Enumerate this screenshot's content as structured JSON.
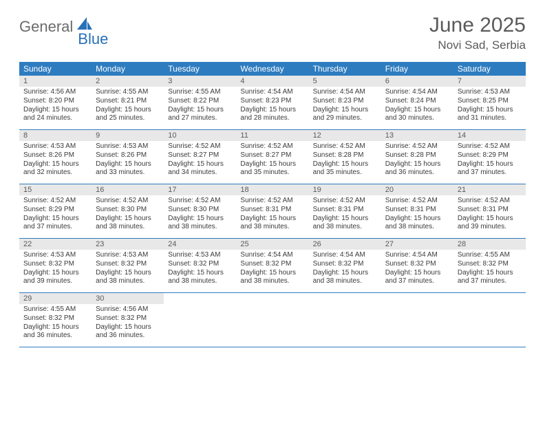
{
  "logo": {
    "text1": "General",
    "text2": "Blue"
  },
  "title": "June 2025",
  "location": "Novi Sad, Serbia",
  "colors": {
    "header_bg": "#2e7cc0",
    "header_fg": "#ffffff",
    "daynum_bg": "#e8e8e8",
    "text": "#3a3a3a",
    "title_color": "#5a5a5a",
    "logo_gray": "#6b6b6b",
    "logo_blue": "#2871b8",
    "row_border": "#2e7cc0"
  },
  "day_labels": [
    "Sunday",
    "Monday",
    "Tuesday",
    "Wednesday",
    "Thursday",
    "Friday",
    "Saturday"
  ],
  "weeks": [
    [
      {
        "n": "1",
        "sr": "4:56 AM",
        "ss": "8:20 PM",
        "dl": "15 hours and 24 minutes."
      },
      {
        "n": "2",
        "sr": "4:55 AM",
        "ss": "8:21 PM",
        "dl": "15 hours and 25 minutes."
      },
      {
        "n": "3",
        "sr": "4:55 AM",
        "ss": "8:22 PM",
        "dl": "15 hours and 27 minutes."
      },
      {
        "n": "4",
        "sr": "4:54 AM",
        "ss": "8:23 PM",
        "dl": "15 hours and 28 minutes."
      },
      {
        "n": "5",
        "sr": "4:54 AM",
        "ss": "8:23 PM",
        "dl": "15 hours and 29 minutes."
      },
      {
        "n": "6",
        "sr": "4:54 AM",
        "ss": "8:24 PM",
        "dl": "15 hours and 30 minutes."
      },
      {
        "n": "7",
        "sr": "4:53 AM",
        "ss": "8:25 PM",
        "dl": "15 hours and 31 minutes."
      }
    ],
    [
      {
        "n": "8",
        "sr": "4:53 AM",
        "ss": "8:26 PM",
        "dl": "15 hours and 32 minutes."
      },
      {
        "n": "9",
        "sr": "4:53 AM",
        "ss": "8:26 PM",
        "dl": "15 hours and 33 minutes."
      },
      {
        "n": "10",
        "sr": "4:52 AM",
        "ss": "8:27 PM",
        "dl": "15 hours and 34 minutes."
      },
      {
        "n": "11",
        "sr": "4:52 AM",
        "ss": "8:27 PM",
        "dl": "15 hours and 35 minutes."
      },
      {
        "n": "12",
        "sr": "4:52 AM",
        "ss": "8:28 PM",
        "dl": "15 hours and 35 minutes."
      },
      {
        "n": "13",
        "sr": "4:52 AM",
        "ss": "8:28 PM",
        "dl": "15 hours and 36 minutes."
      },
      {
        "n": "14",
        "sr": "4:52 AM",
        "ss": "8:29 PM",
        "dl": "15 hours and 37 minutes."
      }
    ],
    [
      {
        "n": "15",
        "sr": "4:52 AM",
        "ss": "8:29 PM",
        "dl": "15 hours and 37 minutes."
      },
      {
        "n": "16",
        "sr": "4:52 AM",
        "ss": "8:30 PM",
        "dl": "15 hours and 38 minutes."
      },
      {
        "n": "17",
        "sr": "4:52 AM",
        "ss": "8:30 PM",
        "dl": "15 hours and 38 minutes."
      },
      {
        "n": "18",
        "sr": "4:52 AM",
        "ss": "8:31 PM",
        "dl": "15 hours and 38 minutes."
      },
      {
        "n": "19",
        "sr": "4:52 AM",
        "ss": "8:31 PM",
        "dl": "15 hours and 38 minutes."
      },
      {
        "n": "20",
        "sr": "4:52 AM",
        "ss": "8:31 PM",
        "dl": "15 hours and 38 minutes."
      },
      {
        "n": "21",
        "sr": "4:52 AM",
        "ss": "8:31 PM",
        "dl": "15 hours and 39 minutes."
      }
    ],
    [
      {
        "n": "22",
        "sr": "4:53 AM",
        "ss": "8:32 PM",
        "dl": "15 hours and 39 minutes."
      },
      {
        "n": "23",
        "sr": "4:53 AM",
        "ss": "8:32 PM",
        "dl": "15 hours and 38 minutes."
      },
      {
        "n": "24",
        "sr": "4:53 AM",
        "ss": "8:32 PM",
        "dl": "15 hours and 38 minutes."
      },
      {
        "n": "25",
        "sr": "4:54 AM",
        "ss": "8:32 PM",
        "dl": "15 hours and 38 minutes."
      },
      {
        "n": "26",
        "sr": "4:54 AM",
        "ss": "8:32 PM",
        "dl": "15 hours and 38 minutes."
      },
      {
        "n": "27",
        "sr": "4:54 AM",
        "ss": "8:32 PM",
        "dl": "15 hours and 37 minutes."
      },
      {
        "n": "28",
        "sr": "4:55 AM",
        "ss": "8:32 PM",
        "dl": "15 hours and 37 minutes."
      }
    ],
    [
      {
        "n": "29",
        "sr": "4:55 AM",
        "ss": "8:32 PM",
        "dl": "15 hours and 36 minutes."
      },
      {
        "n": "30",
        "sr": "4:56 AM",
        "ss": "8:32 PM",
        "dl": "15 hours and 36 minutes."
      },
      null,
      null,
      null,
      null,
      null
    ]
  ],
  "labels": {
    "sunrise": "Sunrise: ",
    "sunset": "Sunset: ",
    "daylight": "Daylight: "
  }
}
